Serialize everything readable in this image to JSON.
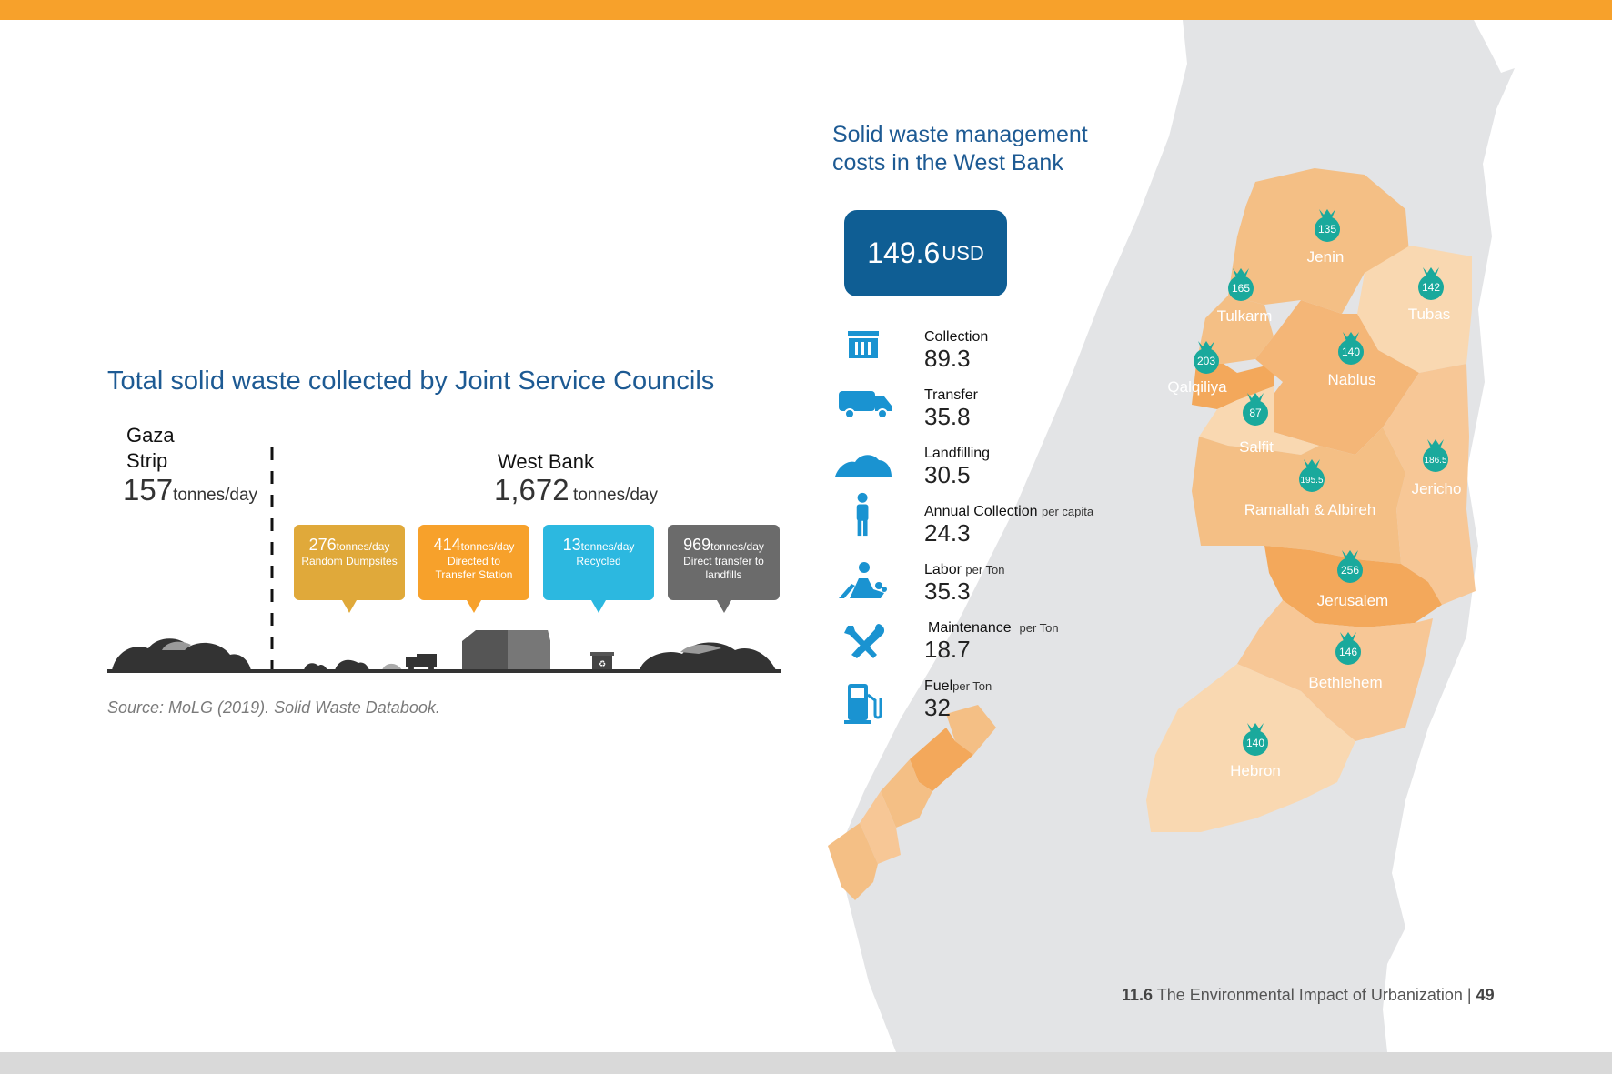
{
  "left": {
    "title": "Total solid waste collected by Joint Service Councils",
    "gaza": {
      "name": "Gaza Strip",
      "value": "157",
      "unit": "tonnes/day"
    },
    "west_bank": {
      "name": "West Bank",
      "value": "1,672",
      "unit": "tonnes/day"
    },
    "callouts": [
      {
        "value": "276",
        "unit": "tonnes/day",
        "label": "Random Dumpsites",
        "color": "#e0a93a"
      },
      {
        "value": "414",
        "unit": "tonnes/day",
        "label": "Directed to Transfer Station",
        "color": "#f7a12b"
      },
      {
        "value": "13",
        "unit": "tonnes/day",
        "label": "Recycled",
        "color": "#2cb8e0"
      },
      {
        "value": "969",
        "unit": "tonnes/day",
        "label": "Direct transfer to landfills",
        "color": "#6b6b6b"
      }
    ],
    "source": "Source: MoLG (2019). Solid Waste Databook."
  },
  "right": {
    "title": "Solid waste management costs in the West Bank",
    "total": {
      "value": "149.6",
      "unit": "USD"
    },
    "costs": [
      {
        "label": "Collection",
        "suffix": "",
        "value": "89.3",
        "icon": "container-icon"
      },
      {
        "label": "Transfer",
        "suffix": "",
        "value": "35.8",
        "icon": "truck-icon"
      },
      {
        "label": "Landfilling",
        "suffix": "",
        "value": "30.5",
        "icon": "landfill-mound-icon"
      },
      {
        "label": "Annual Collection",
        "suffix": "per capita",
        "value": "24.3",
        "icon": "person-icon"
      },
      {
        "label": "Labor",
        "suffix": "per Ton",
        "value": "35.3",
        "icon": "worker-icon"
      },
      {
        "label": "Maintenance",
        "suffix": "per Ton",
        "value": "18.7",
        "icon": "tools-icon"
      },
      {
        "label": "Fuel",
        "suffix": "per Ton",
        "value": "32",
        "icon": "fuel-pump-icon"
      }
    ],
    "governorates": [
      {
        "name": "Jenin",
        "cost": "135"
      },
      {
        "name": "Tulkarm",
        "cost": "165"
      },
      {
        "name": "Tubas",
        "cost": "142"
      },
      {
        "name": "Qalqiliya",
        "cost": "203"
      },
      {
        "name": "Nablus",
        "cost": "140"
      },
      {
        "name": "Salfit",
        "cost": "87"
      },
      {
        "name": "Ramallah & Albireh",
        "cost": "195.5"
      },
      {
        "name": "Jericho",
        "cost": "186.5"
      },
      {
        "name": "Jerusalem",
        "cost": "256"
      },
      {
        "name": "Bethlehem",
        "cost": "146"
      },
      {
        "name": "Hebron",
        "cost": "140"
      }
    ]
  },
  "footer": {
    "section": "11.6",
    "title": "The Environmental Impact of Urbanization",
    "separator": "|",
    "page": "49"
  },
  "colors": {
    "accent_bar": "#f7a12b",
    "title_blue": "#1d5a93",
    "icon_blue": "#1a93d1",
    "bag_teal": "#1aa99c"
  }
}
